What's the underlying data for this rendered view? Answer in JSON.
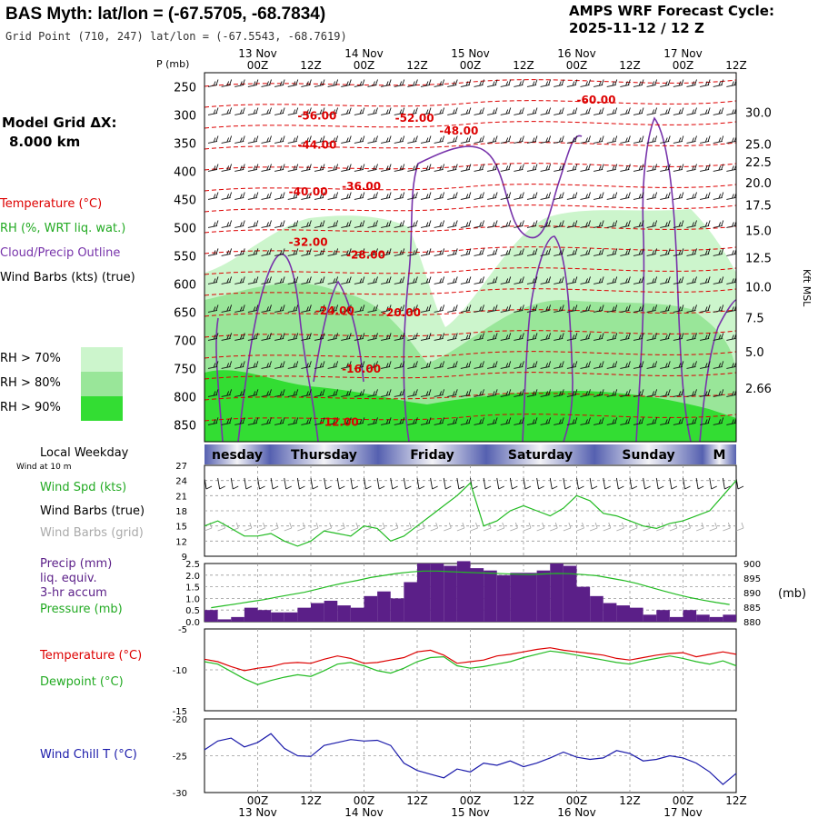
{
  "header": {
    "title": "BAS Myth:  lat/lon = (-67.5705, -68.7834)",
    "grid_point": "Grid Point (710, 247) lat/lon = (-67.5543, -68.7619)",
    "cycle_label": "AMPS WRF Forecast Cycle:",
    "cycle_value": "2025-11-12 / 12  Z"
  },
  "left_panel": {
    "model_grid_label": "Model Grid ΔX:",
    "model_grid_value": "8.000 km",
    "legend_temperature": "Temperature (°C)",
    "legend_rh": "RH (%, WRT liq. wat.)",
    "legend_cloud": "Cloud/Precip Outline",
    "legend_wind": "Wind Barbs (kts) (true)",
    "rh_key": [
      {
        "label": "RH > 70%",
        "color": "#ccf5cc"
      },
      {
        "label": "RH > 80%",
        "color": "#99e699"
      },
      {
        "label": "RH > 90%",
        "color": "#33dd33"
      }
    ],
    "local_weekday": "Local Weekday",
    "wind_at_10m": "Wind at 10 m",
    "wind_spd": "Wind Spd (kts)",
    "wind_barbs_true": "Wind Barbs (true)",
    "wind_barbs_grid": "Wind Barbs (grid)",
    "precip": "Precip (mm)",
    "liq_equiv": "liq. equiv.",
    "accum": "3-hr accum",
    "pressure": "Pressure (mb)",
    "temperature": "Temperature (°C)",
    "dewpoint": "Dewpoint (°C)",
    "wind_chill": "Wind Chill T (°C)"
  },
  "colors": {
    "temperature": "#dd0000",
    "rh_label": "#22aa22",
    "cloud": "#7733aa",
    "precip_bar": "#5b1f88",
    "wind_spd": "#22bb22",
    "pressure": "#22bb22",
    "wind_chill": "#1a1aaa",
    "grid_barbs": "#aaaaaa"
  },
  "chart_data": [
    {
      "type": "heatmap",
      "name": "upper-air cross-section",
      "time_axis": {
        "top_dates": [
          "13 Nov",
          "14 Nov",
          "15 Nov",
          "16 Nov",
          "17 Nov"
        ],
        "top_ticks": [
          "00Z",
          "12Z",
          "00Z",
          "12Z",
          "00Z",
          "12Z",
          "00Z",
          "12Z",
          "00Z",
          "12Z"
        ],
        "tick_hours": [
          12,
          24,
          36,
          48,
          60,
          72,
          84,
          96,
          108,
          120
        ]
      },
      "pressure_label": "P (mb)",
      "pressure_ticks": [
        250,
        300,
        350,
        400,
        450,
        500,
        550,
        600,
        650,
        700,
        750,
        800,
        850
      ],
      "ylim": [
        225,
        880
      ],
      "height_label": "Kft MSL",
      "height_ticks": [
        {
          "label": "30.0",
          "p": 295
        },
        {
          "label": "25.0",
          "p": 352
        },
        {
          "label": "22.5",
          "p": 383
        },
        {
          "label": "20.0",
          "p": 420
        },
        {
          "label": "17.5",
          "p": 460
        },
        {
          "label": "15.0",
          "p": 505
        },
        {
          "label": "12.5",
          "p": 553
        },
        {
          "label": "10.0",
          "p": 605
        },
        {
          "label": "7.5",
          "p": 660
        },
        {
          "label": "5.0",
          "p": 720
        },
        {
          "label": "2.66",
          "p": 785
        }
      ],
      "temp_labels": [
        {
          "text": "-56.00",
          "h": 21,
          "p": 308
        },
        {
          "text": "-52.00",
          "h": 43,
          "p": 312
        },
        {
          "text": "-60.00",
          "h": 84,
          "p": 280
        },
        {
          "text": "-48.00",
          "h": 53,
          "p": 335
        },
        {
          "text": "-44.00",
          "h": 21,
          "p": 360
        },
        {
          "text": "-40.00",
          "h": 19,
          "p": 443
        },
        {
          "text": "-36.00",
          "h": 31,
          "p": 433
        },
        {
          "text": "-32.00",
          "h": 19,
          "p": 532
        },
        {
          "text": "-28.00",
          "h": 32,
          "p": 555
        },
        {
          "text": "-24.00",
          "h": 25,
          "p": 654
        },
        {
          "text": "-20.00",
          "h": 40,
          "p": 657
        },
        {
          "text": "-16.00",
          "h": 31,
          "p": 757
        },
        {
          "text": "-12.00",
          "h": 26,
          "p": 852
        }
      ]
    },
    {
      "type": "line",
      "name": "wind speed at 10 m",
      "ylim": [
        9,
        27
      ],
      "yticks": [
        9,
        12,
        15,
        18,
        21,
        24,
        27
      ],
      "x_hours": [
        0,
        3,
        6,
        9,
        12,
        15,
        18,
        21,
        24,
        27,
        30,
        33,
        36,
        39,
        42,
        45,
        48,
        51,
        54,
        57,
        60,
        63,
        66,
        69,
        72,
        75,
        78,
        81,
        84,
        87,
        90,
        93,
        96,
        99,
        102,
        105,
        108,
        111,
        114,
        117,
        120
      ],
      "series": [
        {
          "values": [
            15,
            16,
            14.5,
            13,
            13,
            13.5,
            12,
            11,
            12,
            14,
            13.5,
            13,
            15,
            14.5,
            12,
            13,
            15,
            17,
            19,
            21,
            23.5,
            15,
            16,
            18,
            19,
            18,
            17,
            18.5,
            21,
            20,
            17.5,
            17,
            16,
            15,
            14.5,
            15.5,
            16,
            17,
            18,
            21,
            24
          ]
        }
      ]
    },
    {
      "type": "bar",
      "name": "3-hr precipitation and surface pressure",
      "precip_ylim": [
        0,
        2.5
      ],
      "precip_ticks": [
        "0.0",
        "0.5",
        "1.0",
        "1.5",
        "2.0",
        "2.5"
      ],
      "pressure_ylim": [
        880,
        900
      ],
      "pressure_ticks": [
        880,
        885,
        890,
        895,
        900
      ],
      "pressure_unit": "(mb)",
      "x_hours": [
        0,
        3,
        6,
        9,
        12,
        15,
        18,
        21,
        24,
        27,
        30,
        33,
        36,
        39,
        42,
        45,
        48,
        51,
        54,
        57,
        60,
        63,
        66,
        69,
        72,
        75,
        78,
        81,
        84,
        87,
        90,
        93,
        96,
        99,
        102,
        105,
        108,
        111,
        114,
        117
      ],
      "precip": [
        0.5,
        0.1,
        0.2,
        0.6,
        0.5,
        0.4,
        0.4,
        0.6,
        0.8,
        0.9,
        0.7,
        0.6,
        1.1,
        1.3,
        1.0,
        1.7,
        2.5,
        2.5,
        2.4,
        2.6,
        2.3,
        2.2,
        2.0,
        2.1,
        2.1,
        2.2,
        2.5,
        2.4,
        1.5,
        1.1,
        0.8,
        0.7,
        0.6,
        0.3,
        0.5,
        0.2,
        0.5,
        0.3,
        0.2,
        0.3
      ],
      "pressure": [
        884.8,
        885.5,
        886.2,
        886.9,
        887.6,
        888.5,
        889.3,
        890.1,
        891.2,
        892.3,
        893.3,
        894.2,
        895.2,
        895.9,
        896.6,
        897.1,
        897.4,
        897.4,
        897.2,
        897.0,
        896.8,
        896.7,
        896.5,
        896.3,
        896.2,
        896.4,
        896.6,
        896.5,
        896.2,
        895.8,
        895.0,
        894.2,
        893.2,
        891.9,
        890.6,
        889.4,
        888.3,
        887.4,
        886.6,
        885.9
      ]
    },
    {
      "type": "line",
      "name": "surface temperature and dewpoint",
      "ylim": [
        -15,
        -5
      ],
      "yticks": [
        -5,
        -10,
        -15
      ],
      "x_hours": [
        0,
        3,
        6,
        9,
        12,
        15,
        18,
        21,
        24,
        27,
        30,
        33,
        36,
        39,
        42,
        45,
        48,
        51,
        54,
        57,
        60,
        63,
        66,
        69,
        72,
        75,
        78,
        81,
        84,
        87,
        90,
        93,
        96,
        99,
        102,
        105,
        108,
        111,
        114,
        117,
        120
      ],
      "series": [
        {
          "name": "Temperature (°C)",
          "color": "#dd0000",
          "values": [
            -8.7,
            -9.0,
            -9.6,
            -10.1,
            -9.8,
            -9.6,
            -9.2,
            -9.1,
            -9.2,
            -8.7,
            -8.3,
            -8.6,
            -9.2,
            -9.1,
            -8.8,
            -8.5,
            -7.8,
            -7.6,
            -8.2,
            -9.2,
            -9.0,
            -8.8,
            -8.3,
            -8.1,
            -7.8,
            -7.5,
            -7.3,
            -7.6,
            -7.8,
            -8.0,
            -8.2,
            -8.6,
            -8.8,
            -8.5,
            -8.2,
            -8.0,
            -7.9,
            -8.4,
            -8.1,
            -7.8,
            -8.1
          ]
        },
        {
          "name": "Dewpoint (°C)",
          "color": "#22bb22",
          "values": [
            -9.0,
            -9.3,
            -10.2,
            -11.1,
            -11.8,
            -11.3,
            -10.9,
            -10.6,
            -10.8,
            -10.1,
            -9.3,
            -9.1,
            -9.5,
            -10.1,
            -10.4,
            -9.8,
            -9.0,
            -8.5,
            -8.4,
            -9.5,
            -9.8,
            -9.6,
            -9.3,
            -9.0,
            -8.5,
            -8.1,
            -7.7,
            -7.9,
            -8.2,
            -8.5,
            -8.8,
            -9.1,
            -9.3,
            -8.9,
            -8.6,
            -8.3,
            -8.6,
            -9.0,
            -9.3,
            -8.9,
            -9.5
          ]
        }
      ]
    },
    {
      "type": "line",
      "name": "wind chill temperature",
      "ylim": [
        -30,
        -20
      ],
      "yticks": [
        -20,
        -25,
        -30
      ],
      "x_hours": [
        0,
        3,
        6,
        9,
        12,
        15,
        18,
        21,
        24,
        27,
        30,
        33,
        36,
        39,
        42,
        45,
        48,
        51,
        54,
        57,
        60,
        63,
        66,
        69,
        72,
        75,
        78,
        81,
        84,
        87,
        90,
        93,
        96,
        99,
        102,
        105,
        108,
        111,
        114,
        117,
        120
      ],
      "series": [
        {
          "name": "Wind Chill T (°C)",
          "values": [
            -24.2,
            -23.0,
            -22.6,
            -23.8,
            -23.2,
            -22.0,
            -24.0,
            -25.0,
            -25.1,
            -23.6,
            -23.2,
            -22.8,
            -23.0,
            -22.9,
            -23.6,
            -26.0,
            -27.0,
            -27.5,
            -28.0,
            -26.8,
            -27.2,
            -26.0,
            -26.3,
            -25.7,
            -26.5,
            -26.0,
            -25.3,
            -24.5,
            -25.2,
            -25.5,
            -25.3,
            -24.3,
            -24.7,
            -25.7,
            -25.5,
            -25.0,
            -25.3,
            -26.0,
            -27.2,
            -28.9,
            -27.4
          ]
        }
      ],
      "bottom_ticks": [
        "00Z",
        "12Z",
        "00Z",
        "12Z",
        "00Z",
        "12Z",
        "00Z",
        "12Z",
        "00Z",
        "12Z"
      ],
      "bottom_dates": [
        "13 Nov",
        "14 Nov",
        "15 Nov",
        "16 Nov",
        "17 Nov"
      ]
    }
  ],
  "weekday_band": [
    "nesday",
    "Thursday",
    "Friday",
    "Saturday",
    "Sunday",
    "M"
  ]
}
